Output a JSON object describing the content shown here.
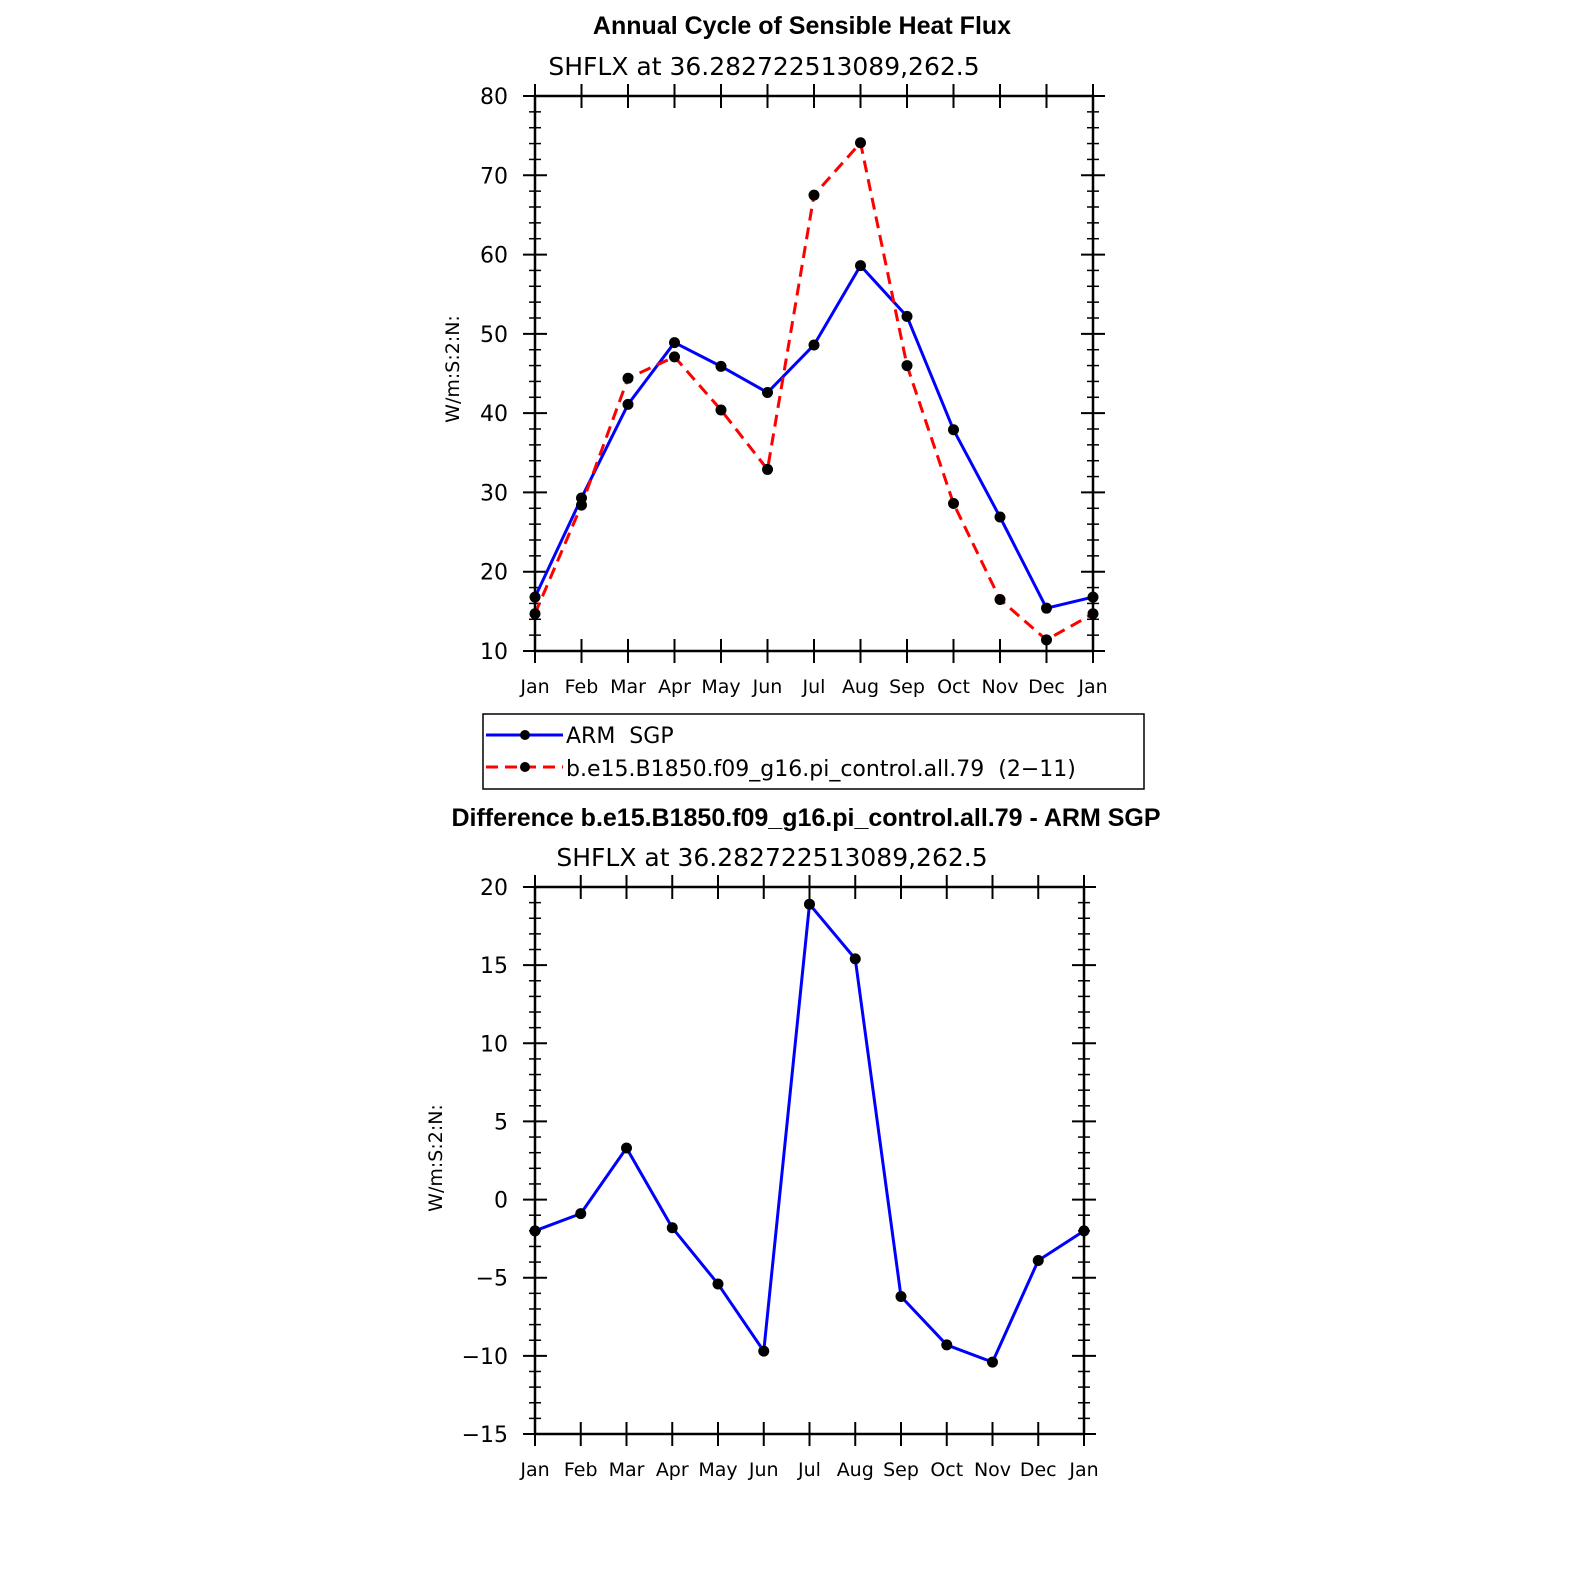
{
  "chart_data": [
    {
      "type": "line",
      "title": "Annual Cycle of Sensible Heat Flux",
      "subtitle": "SHFLX  at  36.282722513089,262.5",
      "ylabel": "W/m:S:2:N:",
      "ylim": [
        10,
        80
      ],
      "yticks": [
        "80",
        "70",
        "60",
        "50",
        "40",
        "30",
        "20",
        "10"
      ],
      "yticks_values": [
        80,
        70,
        60,
        50,
        40,
        30,
        20,
        10
      ],
      "categories": [
        "Jan",
        "Feb",
        "Mar",
        "Apr",
        "May",
        "Jun",
        "Jul",
        "Aug",
        "Sep",
        "Oct",
        "Nov",
        "Dec",
        "Jan"
      ],
      "series": [
        {
          "name": "ARM  SGP",
          "color": "#0000ff",
          "style": "solid",
          "values": [
            16.8,
            29.3,
            41.1,
            48.9,
            45.9,
            42.6,
            48.6,
            58.6,
            52.2,
            37.9,
            26.9,
            15.4,
            16.8
          ]
        },
        {
          "name": "b.e15.B1850.f09_g16.pi_control.all.79  (2−11)",
          "color": "#ff0000",
          "style": "dashed",
          "values": [
            14.7,
            28.4,
            44.4,
            47.1,
            40.4,
            32.9,
            67.5,
            74.1,
            46.0,
            28.6,
            16.5,
            11.4,
            14.7
          ]
        }
      ]
    },
    {
      "type": "line",
      "title": "Difference b.e15.B1850.f09_g16.pi_control.all.79 - ARM SGP",
      "subtitle": "SHFLX  at  36.282722513089,262.5",
      "ylabel": "W/m:S:2:N:",
      "ylim": [
        -15,
        20
      ],
      "yticks": [
        "20",
        "15",
        "10",
        "5",
        "0",
        "−5",
        "−10",
        "−15"
      ],
      "yticks_values": [
        20,
        15,
        10,
        5,
        0,
        -5,
        -10,
        -15
      ],
      "categories": [
        "Jan",
        "Feb",
        "Mar",
        "Apr",
        "May",
        "Jun",
        "Jul",
        "Aug",
        "Sep",
        "Oct",
        "Nov",
        "Dec",
        "Jan"
      ],
      "series": [
        {
          "name": "Difference",
          "color": "#0000ff",
          "style": "solid",
          "values": [
            -2.0,
            -0.9,
            3.3,
            -1.8,
            -5.4,
            -9.7,
            18.9,
            15.4,
            -6.2,
            -9.3,
            -10.4,
            -3.9,
            -2.0
          ]
        }
      ]
    }
  ]
}
